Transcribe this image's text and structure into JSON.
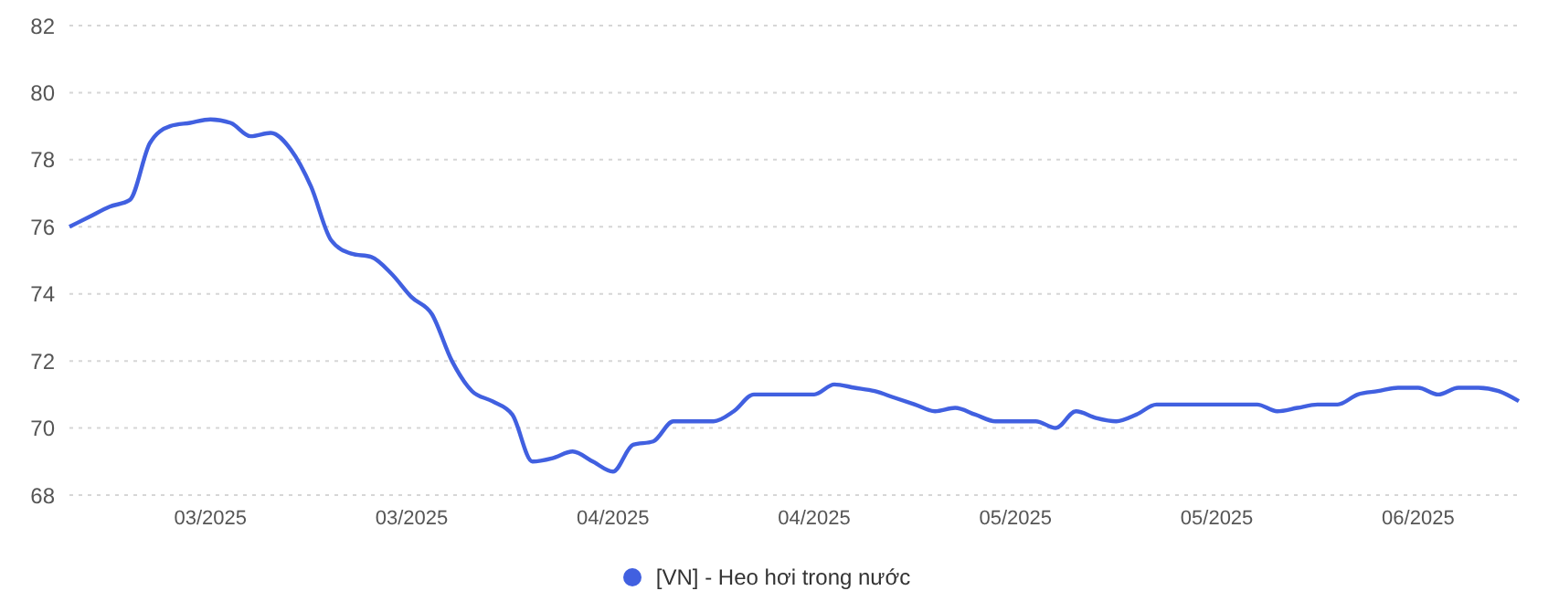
{
  "chart_data": {
    "type": "line",
    "categories": [
      null,
      null,
      null,
      null,
      null,
      null,
      null,
      "03/2025",
      null,
      null,
      null,
      null,
      null,
      null,
      null,
      null,
      null,
      "03/2025",
      null,
      null,
      null,
      null,
      null,
      null,
      null,
      null,
      null,
      "04/2025",
      null,
      null,
      null,
      null,
      null,
      null,
      null,
      null,
      null,
      "04/2025",
      null,
      null,
      null,
      null,
      null,
      null,
      null,
      null,
      null,
      "05/2025",
      null,
      null,
      null,
      null,
      null,
      null,
      null,
      null,
      null,
      "05/2025",
      null,
      null,
      null,
      null,
      null,
      null,
      null,
      null,
      null,
      "06/2025",
      null,
      null,
      null,
      null,
      null
    ],
    "series": [
      {
        "name": "[VN] - Heo hơi trong nước",
        "color": "#4160e0",
        "values": [
          76.0,
          76.3,
          76.6,
          76.8,
          78.5,
          79.0,
          79.1,
          79.2,
          79.1,
          78.7,
          78.8,
          78.3,
          77.2,
          75.6,
          75.2,
          75.1,
          74.6,
          73.9,
          73.4,
          72.0,
          71.1,
          70.8,
          70.4,
          69.0,
          69.1,
          69.3,
          69.0,
          68.7,
          69.5,
          69.6,
          70.2,
          70.2,
          70.2,
          70.5,
          71.0,
          71.0,
          71.0,
          71.0,
          71.3,
          71.2,
          71.1,
          70.9,
          70.7,
          70.5,
          70.6,
          70.4,
          70.2,
          70.2,
          70.2,
          70.0,
          70.5,
          70.3,
          70.2,
          70.4,
          70.7,
          70.7,
          70.7,
          70.7,
          70.7,
          70.7,
          70.5,
          70.6,
          70.7,
          70.7,
          71.0,
          71.1,
          71.2,
          71.2,
          71.0,
          71.2,
          71.2,
          71.1,
          70.8
        ]
      }
    ],
    "ylim": [
      68,
      82
    ],
    "yticks": [
      68,
      70,
      72,
      74,
      76,
      78,
      80,
      82
    ],
    "grid": "y",
    "legend": "bottom",
    "marker": "none",
    "line_style": "solid"
  }
}
